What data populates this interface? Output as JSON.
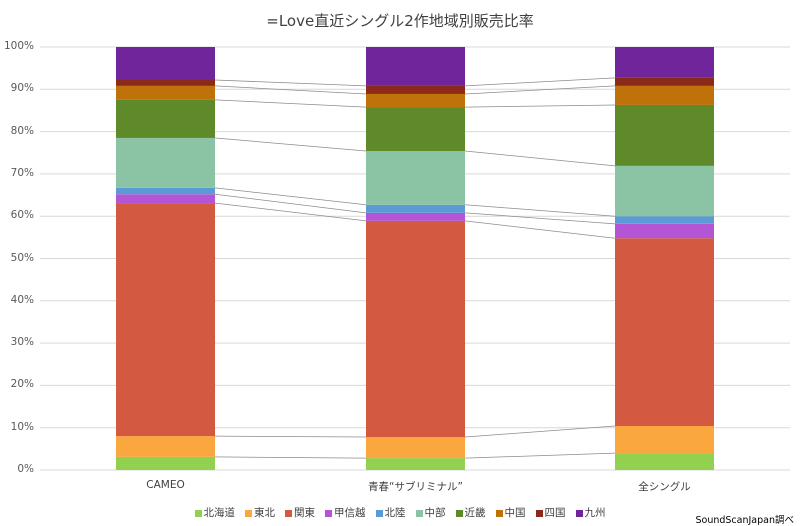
{
  "chart_data": {
    "type": "bar",
    "stacked": "percent",
    "title": "=Love直近シングル2作地域別販売比率",
    "xlabel": "",
    "ylabel": "",
    "ylim": [
      0,
      100
    ],
    "yticks": [
      "0%",
      "10%",
      "20%",
      "30%",
      "40%",
      "50%",
      "60%",
      "70%",
      "80%",
      "90%",
      "100%"
    ],
    "categories": [
      "CAMEO",
      "青春“サブリミナル”",
      "全シングル"
    ],
    "series": [
      {
        "name": "北海道",
        "color": "#92D050",
        "values": [
          3.1,
          2.8,
          4.0
        ]
      },
      {
        "name": "東北",
        "color": "#F9A73E",
        "values": [
          4.9,
          5.0,
          6.4
        ]
      },
      {
        "name": "関東",
        "color": "#D35A40",
        "values": [
          55.1,
          51.1,
          44.4
        ]
      },
      {
        "name": "甲信越",
        "color": "#B455D6",
        "values": [
          2.1,
          1.9,
          3.4
        ]
      },
      {
        "name": "北陸",
        "color": "#5B9BD5",
        "values": [
          1.5,
          1.9,
          1.8
        ]
      },
      {
        "name": "中部",
        "color": "#8AC4A4",
        "values": [
          11.8,
          12.7,
          11.9
        ]
      },
      {
        "name": "近畿",
        "color": "#5E8A2A",
        "values": [
          9.0,
          10.4,
          14.4
        ]
      },
      {
        "name": "中国",
        "color": "#C0720A",
        "values": [
          3.3,
          3.1,
          4.5
        ]
      },
      {
        "name": "四国",
        "color": "#8B2A18",
        "values": [
          1.4,
          1.9,
          1.9
        ]
      },
      {
        "name": "九州",
        "color": "#70259A",
        "values": [
          7.8,
          9.2,
          7.3
        ]
      }
    ],
    "grid": true,
    "series_lines": true,
    "legend_position": "bottom"
  },
  "source": "SoundScanJapan調べ"
}
